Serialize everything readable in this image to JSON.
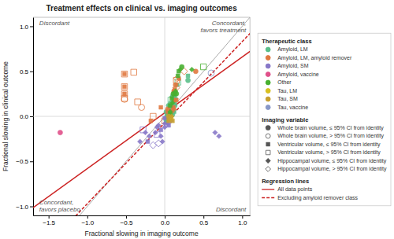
{
  "chart_data": {
    "type": "scatter",
    "title": "Treatment effects on clinical vs. imaging outcomes",
    "xlabel": "Fractional slowing in imaging outcome",
    "ylabel": "Fractional slowing in clinical outcome",
    "xlim": [
      -1.7,
      1.1
    ],
    "ylim": [
      -1.1,
      1.1
    ],
    "xticks": [
      {
        "value": -1.5,
        "label": "−1.5"
      },
      {
        "value": -1.0,
        "label": "−1.0"
      },
      {
        "value": -0.5,
        "label": "−0.5"
      },
      {
        "value": 0.0,
        "label": "0.0"
      },
      {
        "value": 0.5,
        "label": "0.5"
      },
      {
        "value": 1.0,
        "label": "1.0"
      }
    ],
    "yticks": [
      {
        "value": -1.0,
        "label": "−1.0"
      },
      {
        "value": -0.5,
        "label": "−0.5"
      },
      {
        "value": 0.0,
        "label": "0.0"
      },
      {
        "value": 0.5,
        "label": "0.5"
      },
      {
        "value": 1.0,
        "label": "1.0"
      }
    ],
    "grid": false,
    "legend": "right",
    "identity_line": {
      "color": "#aaaaaa"
    },
    "series_title": "Therapeutic class",
    "series": [
      {
        "name": "Amyloid, LM",
        "color": "#5bbf8a",
        "x": [
          0.02,
          0.02,
          0.02,
          0.03,
          0.03,
          0.03,
          0.04,
          0.04,
          0.05,
          0.05,
          0.05,
          0.06,
          0.06,
          0.06,
          0.06,
          0.08,
          0.08,
          0.08,
          0.08,
          0.09,
          0.1,
          0.1,
          0.1,
          0.1,
          0.11,
          0.11,
          0.12,
          0.12,
          0.12,
          0.13,
          0.14,
          0.16,
          0.17,
          0.3,
          0.3
        ],
        "values": [
          0.05,
          -0.02,
          -0.05,
          0.0,
          0.02,
          -0.05,
          0.02,
          -0.03,
          0.12,
          0.05,
          0.02,
          0.1,
          0.05,
          0.0,
          -0.02,
          0.18,
          0.15,
          0.08,
          0.05,
          0.1,
          0.22,
          0.12,
          0.08,
          0.02,
          0.18,
          0.05,
          0.22,
          0.15,
          0.05,
          0.12,
          0.2,
          0.35,
          0.38,
          0.45,
          0.4
        ],
        "markers": [
          "circle",
          "circle",
          "circle",
          "circle",
          "square",
          "square",
          "square",
          "diamond",
          "circle",
          "circle",
          "circle",
          "square",
          "diamond",
          "square",
          "circle",
          "square-open",
          "circle",
          "circle",
          "square",
          "square",
          "circle",
          "diamond",
          "square",
          "circle",
          "square",
          "diamond",
          "square",
          "circle",
          "square",
          "circle",
          "diamond",
          "square",
          "square-open",
          "square",
          "circle"
        ]
      },
      {
        "name": "Amyloid, LM, amyloid remover",
        "color": "#e07840",
        "x": [
          -0.52,
          -0.52,
          -0.52,
          -0.52,
          -0.52,
          -0.52,
          -0.52,
          -0.52,
          -0.4,
          -0.35,
          -0.3,
          -0.18,
          -0.15,
          -0.05,
          0.0,
          0.04,
          0.04,
          0.09,
          0.11,
          0.12,
          0.12,
          0.13,
          0.13,
          0.14,
          0.15,
          0.15,
          0.15,
          0.16,
          0.18,
          0.25,
          0.4
        ],
        "values": [
          0.47,
          0.33,
          0.25,
          0.2,
          0.47,
          0.33,
          0.25,
          0.19,
          0.49,
          0.16,
          0.1,
          -0.05,
          0.0,
          0.1,
          -0.05,
          0.08,
          0.05,
          0.05,
          0.1,
          0.28,
          0.08,
          0.3,
          0.18,
          0.35,
          0.4,
          0.32,
          0.18,
          0.42,
          0.42,
          0.5,
          0.5
        ],
        "markers": [
          "square-open",
          "square-open",
          "square-open",
          "square-open",
          "square",
          "square",
          "square",
          "circle-open",
          "square-open",
          "square-open",
          "circle-open",
          "square",
          "square-open",
          "square",
          "square-open",
          "circle",
          "square",
          "diamond",
          "square",
          "circle",
          "diamond",
          "square",
          "diamond",
          "circle",
          "square-open",
          "diamond-open",
          "square",
          "diamond-open",
          "square",
          "diamond-open",
          "circle"
        ]
      },
      {
        "name": "Amyloid, SM",
        "color": "#8878c8",
        "x": [
          -0.32,
          -0.28,
          -0.25,
          -0.22,
          -0.2,
          -0.15,
          -0.12,
          -0.1,
          -0.1,
          -0.08,
          -0.08,
          -0.05,
          -0.05,
          -0.03,
          0.0,
          0.0,
          0.0,
          0.04,
          0.05,
          0.08,
          0.65,
          0.7
        ],
        "values": [
          -0.28,
          -0.15,
          -0.18,
          -0.28,
          -0.22,
          -0.32,
          -0.18,
          -0.2,
          -0.12,
          -0.1,
          -0.3,
          -0.15,
          -0.22,
          -0.28,
          -0.02,
          -0.08,
          -0.12,
          -0.08,
          -0.1,
          -0.05,
          -0.18,
          -0.22
        ],
        "markers": [
          "diamond",
          "square-open",
          "diamond",
          "square",
          "diamond",
          "diamond-open",
          "diamond",
          "square-open",
          "diamond",
          "diamond",
          "diamond-open",
          "square",
          "diamond",
          "diamond",
          "square",
          "diamond",
          "diamond",
          "diamond",
          "square",
          "diamond",
          "diamond",
          "diamond"
        ]
      },
      {
        "name": "Amyloid, vaccine",
        "color": "#e0508a",
        "x": [
          -1.35
        ],
        "values": [
          -0.18
        ],
        "markers": [
          "circle"
        ]
      },
      {
        "name": "Other",
        "color": "#48b030",
        "x": [
          0.07,
          0.07,
          0.07,
          0.09,
          0.1,
          0.11,
          0.13,
          0.14,
          0.15,
          0.17,
          0.18,
          0.2,
          0.22,
          0.35,
          0.5
        ],
        "values": [
          0.12,
          0.05,
          0.02,
          0.2,
          0.15,
          0.25,
          0.25,
          0.28,
          0.25,
          0.45,
          0.5,
          0.52,
          0.55,
          0.52,
          0.55
        ],
        "markers": [
          "square",
          "diamond",
          "circle",
          "square",
          "diamond",
          "circle",
          "square",
          "diamond",
          "circle",
          "square",
          "square",
          "diamond",
          "circle",
          "diamond",
          "square-open"
        ]
      },
      {
        "name": "Tau, LM",
        "color": "#d8c020",
        "x": [
          0.08
        ],
        "values": [
          -0.02
        ],
        "markers": [
          "circle"
        ]
      },
      {
        "name": "Tau, SM",
        "color": "#c8a030",
        "x": [
          0.05,
          0.05,
          0.09,
          0.1
        ],
        "values": [
          0.0,
          -0.05,
          0.0,
          -0.05
        ],
        "markers": [
          "circle",
          "square",
          "diamond",
          "square"
        ]
      },
      {
        "name": "Tau, vaccine",
        "color": "#8898c8",
        "x": [
          0.6
        ],
        "values": [
          0.48
        ],
        "markers": [
          "circle-open"
        ]
      }
    ],
    "marker_key": {
      "title": "Imaging variable",
      "entries": [
        {
          "name": "Whole brain volume, ≤ 95% CI from identity",
          "marker": "circle"
        },
        {
          "name": "Whole brain volume, > 95% CI from identity",
          "marker": "circle-open"
        },
        {
          "name": "Ventricular volume, ≤ 95% CI from identity",
          "marker": "square"
        },
        {
          "name": "Ventricular volume, > 95% CI from identity",
          "marker": "square-open"
        },
        {
          "name": "Hippocampal volume, ≤ 95% CI from identity",
          "marker": "diamond"
        },
        {
          "name": "Hippocampal volume, > 95% CI from identity",
          "marker": "diamond-open"
        }
      ]
    },
    "regression_lines": {
      "title": "Regression lines",
      "lines": [
        {
          "name": "All data points",
          "slope": 0.62,
          "intercept": 0.04,
          "color": "#cc2222",
          "line_style": "solid"
        },
        {
          "name": "Excluding amyloid remover class",
          "slope": 0.9,
          "intercept": -0.07,
          "color": "#cc2222",
          "line_style": "dashed"
        }
      ]
    },
    "annotations": [
      {
        "text": "Discordant",
        "x": -1.62,
        "y": 1.07
      },
      {
        "text": "Concordant,\nfavors treatment",
        "x": 1.05,
        "y": 1.07
      },
      {
        "text": "Concordant,\nfavors placebo",
        "x": -1.62,
        "y": -1.07
      },
      {
        "text": "Discordant",
        "x": 1.05,
        "y": -1.07
      }
    ]
  }
}
